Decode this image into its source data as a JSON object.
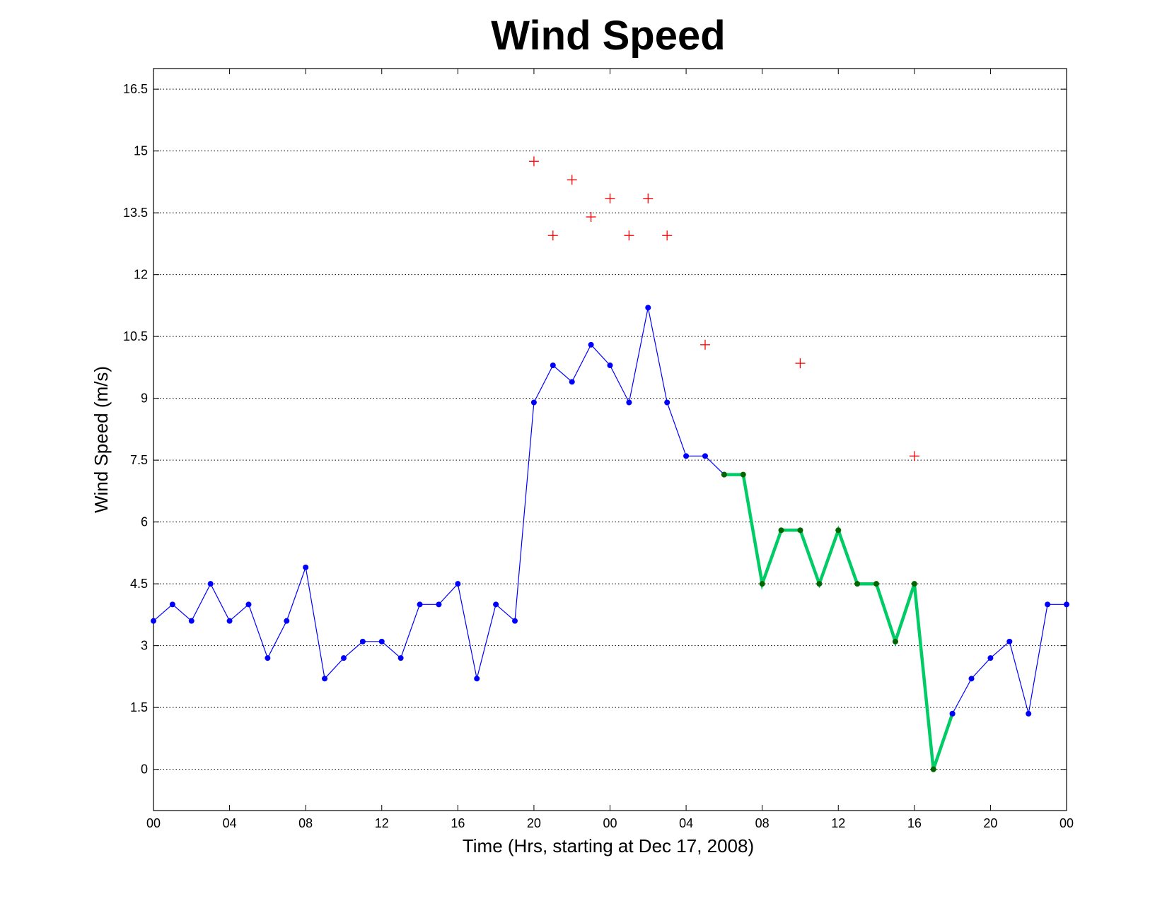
{
  "chart_data": {
    "type": "line",
    "title": "Wind Speed",
    "xlabel": "Time (Hrs, starting at Dec 17, 2008)",
    "ylabel": "Wind Speed (m/s)",
    "xlim": [
      0,
      48
    ],
    "ylim": [
      -1,
      17
    ],
    "grid": "y-dotted",
    "x_ticks": [
      {
        "x": 0,
        "label": "00"
      },
      {
        "x": 4,
        "label": "04"
      },
      {
        "x": 8,
        "label": "08"
      },
      {
        "x": 12,
        "label": "12"
      },
      {
        "x": 16,
        "label": "16"
      },
      {
        "x": 20,
        "label": "20"
      },
      {
        "x": 24,
        "label": "00"
      },
      {
        "x": 28,
        "label": "04"
      },
      {
        "x": 32,
        "label": "08"
      },
      {
        "x": 36,
        "label": "12"
      },
      {
        "x": 40,
        "label": "16"
      },
      {
        "x": 44,
        "label": "20"
      },
      {
        "x": 48,
        "label": "00"
      }
    ],
    "y_ticks": [
      {
        "y": 0,
        "label": "0"
      },
      {
        "y": 1.5,
        "label": "1.5"
      },
      {
        "y": 3,
        "label": "3"
      },
      {
        "y": 4.5,
        "label": "4.5"
      },
      {
        "y": 6,
        "label": "6"
      },
      {
        "y": 7.5,
        "label": "7.5"
      },
      {
        "y": 9,
        "label": "9"
      },
      {
        "y": 10.5,
        "label": "10.5"
      },
      {
        "y": 12,
        "label": "12"
      },
      {
        "y": 13.5,
        "label": "13.5"
      },
      {
        "y": 15,
        "label": "15"
      },
      {
        "y": 16.5,
        "label": "16.5"
      }
    ],
    "series": [
      {
        "color": "#0000ff",
        "style": "thin-line-dots",
        "points": [
          [
            0,
            3.6
          ],
          [
            1,
            4.0
          ],
          [
            2,
            3.6
          ],
          [
            3,
            4.5
          ],
          [
            4,
            3.6
          ],
          [
            5,
            4.0
          ],
          [
            6,
            2.7
          ],
          [
            7,
            3.6
          ],
          [
            8,
            4.9
          ],
          [
            9,
            2.2
          ],
          [
            10,
            2.7
          ],
          [
            11,
            3.1
          ],
          [
            12,
            3.1
          ],
          [
            13,
            2.7
          ],
          [
            14,
            4.0
          ],
          [
            15,
            4.0
          ],
          [
            16,
            4.5
          ],
          [
            17,
            2.2
          ],
          [
            18,
            4.0
          ],
          [
            19,
            3.6
          ],
          [
            20,
            8.9
          ],
          [
            21,
            9.8
          ],
          [
            22,
            9.4
          ],
          [
            23,
            10.3
          ],
          [
            24,
            9.8
          ],
          [
            25,
            8.9
          ],
          [
            26,
            11.2
          ],
          [
            27,
            8.9
          ],
          [
            28,
            7.6
          ],
          [
            29,
            7.6
          ],
          [
            30,
            7.15
          ]
        ]
      },
      {
        "color": "#00cc66",
        "marker_color": "#006600",
        "style": "thick-line-dots",
        "points": [
          [
            30,
            7.15
          ],
          [
            31,
            7.15
          ],
          [
            32,
            4.5
          ],
          [
            33,
            5.8
          ],
          [
            34,
            5.8
          ],
          [
            35,
            4.5
          ],
          [
            36,
            5.8
          ],
          [
            37,
            4.5
          ],
          [
            38,
            4.5
          ],
          [
            39,
            3.1
          ],
          [
            40,
            4.5
          ],
          [
            41,
            0
          ],
          [
            42,
            1.35
          ]
        ]
      },
      {
        "color": "#0000ff",
        "style": "thin-line-dots",
        "points": [
          [
            42,
            1.35
          ],
          [
            43,
            2.2
          ],
          [
            44,
            2.7
          ],
          [
            45,
            3.1
          ],
          [
            46,
            1.35
          ],
          [
            47,
            4.0
          ],
          [
            48,
            4.0
          ]
        ]
      },
      {
        "color": "#ff0000",
        "style": "plus-markers",
        "points": [
          [
            20,
            14.75
          ],
          [
            21,
            12.95
          ],
          [
            22,
            14.3
          ],
          [
            23,
            13.4
          ],
          [
            24,
            13.85
          ],
          [
            25,
            12.95
          ],
          [
            26,
            13.85
          ],
          [
            27,
            12.95
          ],
          [
            29,
            10.3
          ],
          [
            34,
            9.85
          ],
          [
            40,
            7.6
          ]
        ]
      }
    ]
  }
}
